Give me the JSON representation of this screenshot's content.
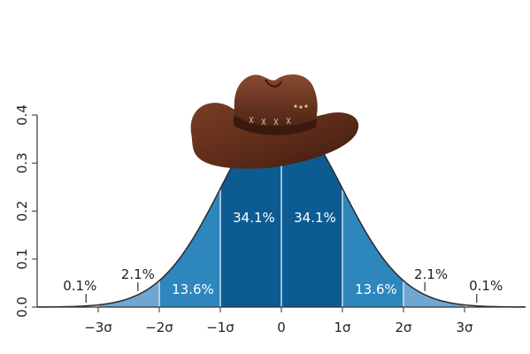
{
  "chart_data": {
    "type": "area",
    "title": "",
    "xlabel": "",
    "ylabel": "",
    "xlim": [
      -4,
      4
    ],
    "ylim": [
      0,
      0.4
    ],
    "x_ticks": [
      {
        "value": -3,
        "label": "−3σ"
      },
      {
        "value": -2,
        "label": "−2σ"
      },
      {
        "value": -1,
        "label": "−1σ"
      },
      {
        "value": 0,
        "label": "0"
      },
      {
        "value": 1,
        "label": "1σ"
      },
      {
        "value": 2,
        "label": "2σ"
      },
      {
        "value": 3,
        "label": "3σ"
      }
    ],
    "y_ticks": [
      {
        "value": 0.0,
        "label": "0.0"
      },
      {
        "value": 0.1,
        "label": "0.1"
      },
      {
        "value": 0.2,
        "label": "0.2"
      },
      {
        "value": 0.3,
        "label": "0.3"
      },
      {
        "value": 0.4,
        "label": "0.4"
      }
    ],
    "regions": [
      {
        "from": -4,
        "to": -3,
        "percent_label": "0.1%",
        "value": 0.1,
        "color": "#ffffff"
      },
      {
        "from": -3,
        "to": -2,
        "percent_label": "2.1%",
        "value": 2.1,
        "color": "#6fa7d2"
      },
      {
        "from": -2,
        "to": -1,
        "percent_label": "13.6%",
        "value": 13.6,
        "color": "#2d87bd"
      },
      {
        "from": -1,
        "to": 0,
        "percent_label": "34.1%",
        "value": 34.1,
        "color": "#0c5c93"
      },
      {
        "from": 0,
        "to": 1,
        "percent_label": "34.1%",
        "value": 34.1,
        "color": "#0c5c93"
      },
      {
        "from": 1,
        "to": 2,
        "percent_label": "13.6%",
        "value": 13.6,
        "color": "#2d87bd"
      },
      {
        "from": 2,
        "to": 3,
        "percent_label": "2.1%",
        "value": 2.1,
        "color": "#6fa7d2"
      },
      {
        "from": 3,
        "to": 4,
        "percent_label": "0.1%",
        "value": 0.1,
        "color": "#ffffff"
      }
    ],
    "label_color_light": "#ffffff",
    "label_color_dark": "#222222",
    "curve_color": "#2a2a2a",
    "axis_color": "#333333",
    "overlay": {
      "name": "cowboy-hat",
      "hat_color": "#6b3422",
      "band_color": "#3a1a10"
    }
  }
}
